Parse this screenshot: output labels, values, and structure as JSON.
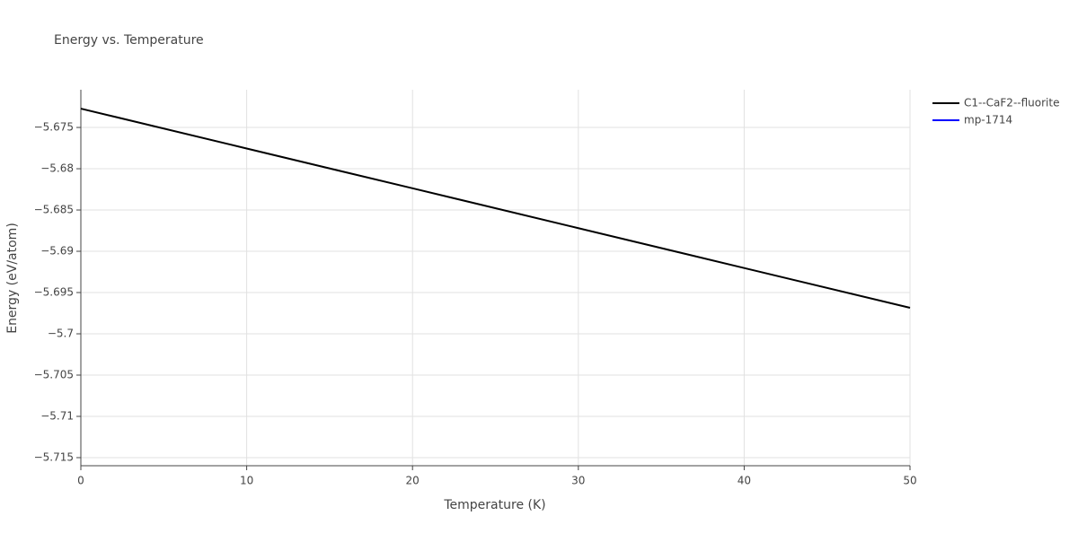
{
  "chart_data": {
    "type": "line",
    "title": "Energy vs. Temperature",
    "x_label": "Temperature (K)",
    "y_label": "Energy (eV/atom)",
    "x": [
      0,
      10,
      20,
      30,
      40,
      50
    ],
    "series": [
      {
        "name": "C1--CaF2--fluorite",
        "color": "#000000",
        "values": [
          -5.67272,
          -5.67755,
          -5.68237,
          -5.6872,
          -5.69203,
          -5.69685
        ]
      },
      {
        "name": "mp-1714",
        "color": "#0000ff",
        "values": [
          null,
          null,
          null,
          null,
          null,
          null
        ]
      }
    ],
    "xlim": [
      0,
      50
    ],
    "xticks": [
      0,
      10,
      20,
      30,
      40,
      50
    ],
    "ylim": [
      -5.71598,
      -5.67043
    ],
    "yticks": [
      {
        "value": -5.715,
        "label": "−5.715"
      },
      {
        "value": -5.71,
        "label": "−5.71"
      },
      {
        "value": -5.705,
        "label": "−5.705"
      },
      {
        "value": -5.7,
        "label": "−5.7"
      },
      {
        "value": -5.695,
        "label": "−5.695"
      },
      {
        "value": -5.69,
        "label": "−5.69"
      },
      {
        "value": -5.685,
        "label": "−5.685"
      },
      {
        "value": -5.68,
        "label": "−5.68"
      },
      {
        "value": -5.675,
        "label": "−5.675"
      }
    ],
    "grid": true,
    "legend": "right"
  }
}
